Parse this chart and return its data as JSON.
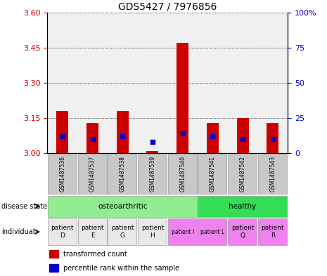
{
  "title": "GDS5427 / 7976856",
  "samples": [
    "GSM1487536",
    "GSM1487537",
    "GSM1487538",
    "GSM1487539",
    "GSM1487540",
    "GSM1487541",
    "GSM1487542",
    "GSM1487543"
  ],
  "transformed_count": [
    3.18,
    3.13,
    3.18,
    3.01,
    3.47,
    3.13,
    3.15,
    3.13
  ],
  "percentile_rank": [
    12,
    10,
    12,
    8,
    14,
    12,
    10,
    10
  ],
  "ylim_left": [
    3.0,
    3.6
  ],
  "ylim_right": [
    0,
    100
  ],
  "yticks_left": [
    3.0,
    3.15,
    3.3,
    3.45,
    3.6
  ],
  "yticks_right": [
    0,
    25,
    50,
    75,
    100
  ],
  "individual": [
    "patient\nD",
    "patient\nE",
    "patient\nG",
    "patient\nH",
    "patient I",
    "patient L",
    "patient\nQ",
    "patient\nR"
  ],
  "individual_small": [
    false,
    false,
    false,
    false,
    true,
    true,
    false,
    false
  ],
  "individual_colors": [
    "#E8E8E8",
    "#E8E8E8",
    "#E8E8E8",
    "#E8E8E8",
    "#EE82EE",
    "#EE82EE",
    "#EE82EE",
    "#EE82EE"
  ],
  "disease_state_oa_color": "#90EE90",
  "disease_state_h_color": "#33DD55",
  "bar_color": "#CC0000",
  "dot_color": "#0000CC",
  "bg_color": "#FFFFFF",
  "plot_bg": "#F0F0F0",
  "left_tick_color": "#CC0000",
  "right_tick_color": "#0000CC",
  "title_fontsize": 10,
  "tick_fontsize": 8,
  "sample_box_color": "#C8C8C8"
}
